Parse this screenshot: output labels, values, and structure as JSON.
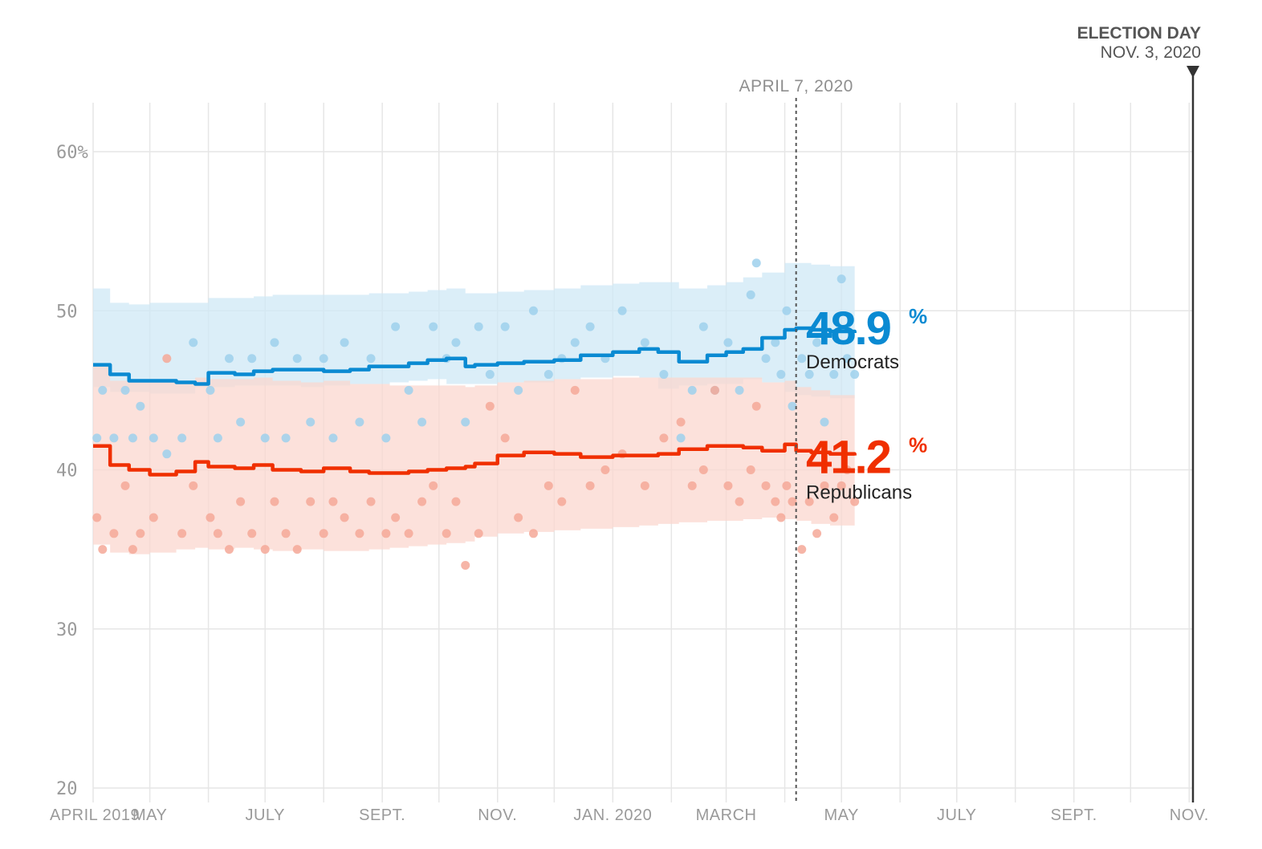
{
  "chart_data": {
    "type": "line",
    "x_type": "date",
    "xlim": [
      "2019-04-01",
      "2020-11-03"
    ],
    "ylim": [
      20,
      62
    ],
    "grid": true,
    "y_ticks": [
      {
        "value": 20,
        "label": "20"
      },
      {
        "value": 30,
        "label": "30"
      },
      {
        "value": 40,
        "label": "40"
      },
      {
        "value": 50,
        "label": "50"
      },
      {
        "value": 60,
        "label": "60%"
      }
    ],
    "x_ticks": [
      {
        "date": "2019-04-01",
        "label": "APRIL 2019"
      },
      {
        "date": "2019-05-01",
        "label": "MAY"
      },
      {
        "date": "2019-07-01",
        "label": "JULY"
      },
      {
        "date": "2019-09-01",
        "label": "SEPT."
      },
      {
        "date": "2019-11-01",
        "label": "NOV."
      },
      {
        "date": "2020-01-01",
        "label": "JAN. 2020"
      },
      {
        "date": "2020-03-01",
        "label": "MARCH"
      },
      {
        "date": "2020-05-01",
        "label": "MAY"
      },
      {
        "date": "2020-07-01",
        "label": "JULY"
      },
      {
        "date": "2020-09-01",
        "label": "SEPT."
      },
      {
        "date": "2020-11-01",
        "label": "NOV."
      }
    ],
    "minor_gridlines": [
      "2019-06-01",
      "2019-08-01",
      "2019-10-01",
      "2019-12-01",
      "2020-02-01",
      "2020-04-01",
      "2020-06-01",
      "2020-08-01",
      "2020-10-01"
    ],
    "today_marker": {
      "date": "2020-04-07",
      "label": "APRIL 7, 2020"
    },
    "election_day": {
      "date": "2020-11-03",
      "title": "ELECTION DAY",
      "date_label": "NOV. 3, 2020"
    },
    "series": [
      {
        "name": "Democrats",
        "value_label": "48.9",
        "pct_symbol": "%",
        "color": "#0a8ad2",
        "band_color": "#cfe8f6",
        "dot_color": "#9dd0ec",
        "x": [
          "2019-04-01",
          "2019-04-10",
          "2019-04-20",
          "2019-05-01",
          "2019-05-15",
          "2019-05-25",
          "2019-06-01",
          "2019-06-15",
          "2019-06-25",
          "2019-07-05",
          "2019-07-20",
          "2019-08-01",
          "2019-08-15",
          "2019-08-25",
          "2019-09-05",
          "2019-09-15",
          "2019-09-25",
          "2019-10-05",
          "2019-10-15",
          "2019-10-20",
          "2019-11-01",
          "2019-11-15",
          "2019-12-01",
          "2019-12-15",
          "2020-01-01",
          "2020-01-15",
          "2020-01-25",
          "2020-02-05",
          "2020-02-20",
          "2020-03-01",
          "2020-03-10",
          "2020-03-20",
          "2020-04-01",
          "2020-04-07",
          "2020-04-15",
          "2020-04-25",
          "2020-05-08"
        ],
        "values": [
          46.6,
          46.0,
          45.6,
          45.6,
          45.5,
          45.4,
          46.1,
          46.0,
          46.2,
          46.3,
          46.3,
          46.2,
          46.3,
          46.5,
          46.5,
          46.7,
          46.9,
          47.0,
          46.5,
          46.6,
          46.7,
          46.8,
          46.9,
          47.2,
          47.4,
          47.6,
          47.4,
          46.8,
          47.2,
          47.4,
          47.6,
          48.3,
          48.8,
          48.9,
          48.8,
          48.7,
          48.6
        ],
        "band_low": [
          45.6,
          45.2,
          44.9,
          44.9,
          44.8,
          44.8,
          45.2,
          45.2,
          45.3,
          45.3,
          45.3,
          45.2,
          45.3,
          45.4,
          45.4,
          45.5,
          45.6,
          45.7,
          45.4,
          45.4,
          45.4,
          45.5,
          45.5,
          45.7,
          45.8,
          45.9,
          45.8,
          45.1,
          45.3,
          45.4,
          45.4,
          45.7,
          45.5,
          44.9,
          44.7,
          44.6,
          44.5
        ],
        "band_high": [
          51.4,
          50.5,
          50.4,
          50.5,
          50.5,
          50.5,
          50.8,
          50.8,
          50.9,
          51.0,
          51.0,
          51.0,
          51.0,
          51.1,
          51.1,
          51.2,
          51.3,
          51.4,
          51.1,
          51.1,
          51.2,
          51.3,
          51.4,
          51.6,
          51.7,
          51.8,
          51.8,
          51.4,
          51.6,
          51.8,
          52.1,
          52.4,
          53.0,
          53.0,
          52.9,
          52.8,
          52.7
        ],
        "polls": [
          [
            {
              "d": "2019-04-03",
              "v": 42
            },
            {
              "d": "2019-04-06",
              "v": 45
            },
            {
              "d": "2019-04-12",
              "v": 42
            },
            {
              "d": "2019-04-18",
              "v": 45
            },
            {
              "d": "2019-04-22",
              "v": 42
            },
            {
              "d": "2019-04-26",
              "v": 44
            },
            {
              "d": "2019-05-03",
              "v": 42
            },
            {
              "d": "2019-05-10",
              "v": 41
            },
            {
              "d": "2019-05-18",
              "v": 42
            },
            {
              "d": "2019-05-24",
              "v": 48
            },
            {
              "d": "2019-06-02",
              "v": 45
            },
            {
              "d": "2019-06-06",
              "v": 42
            },
            {
              "d": "2019-06-12",
              "v": 47
            },
            {
              "d": "2019-06-18",
              "v": 43
            },
            {
              "d": "2019-06-24",
              "v": 47
            },
            {
              "d": "2019-07-01",
              "v": 42
            },
            {
              "d": "2019-07-06",
              "v": 48
            },
            {
              "d": "2019-07-12",
              "v": 42
            },
            {
              "d": "2019-07-18",
              "v": 47
            },
            {
              "d": "2019-07-25",
              "v": 43
            },
            {
              "d": "2019-08-01",
              "v": 47
            },
            {
              "d": "2019-08-06",
              "v": 42
            },
            {
              "d": "2019-08-12",
              "v": 48
            },
            {
              "d": "2019-08-20",
              "v": 43
            },
            {
              "d": "2019-08-26",
              "v": 47
            },
            {
              "d": "2019-09-03",
              "v": 42
            },
            {
              "d": "2019-09-08",
              "v": 49
            },
            {
              "d": "2019-09-15",
              "v": 45
            },
            {
              "d": "2019-09-22",
              "v": 43
            },
            {
              "d": "2019-09-28",
              "v": 49
            },
            {
              "d": "2019-10-05",
              "v": 47
            },
            {
              "d": "2019-10-10",
              "v": 48
            },
            {
              "d": "2019-10-15",
              "v": 43
            },
            {
              "d": "2019-10-22",
              "v": 49
            },
            {
              "d": "2019-10-28",
              "v": 46
            },
            {
              "d": "2019-11-05",
              "v": 49
            },
            {
              "d": "2019-11-12",
              "v": 45
            },
            {
              "d": "2019-11-20",
              "v": 50
            },
            {
              "d": "2019-11-28",
              "v": 46
            },
            {
              "d": "2019-12-05",
              "v": 47
            },
            {
              "d": "2019-12-12",
              "v": 48
            },
            {
              "d": "2019-12-20",
              "v": 49
            },
            {
              "d": "2019-12-28",
              "v": 47
            },
            {
              "d": "2020-01-06",
              "v": 50
            },
            {
              "d": "2020-01-18",
              "v": 48
            },
            {
              "d": "2020-01-28",
              "v": 46
            },
            {
              "d": "2020-02-06",
              "v": 42
            },
            {
              "d": "2020-02-12",
              "v": 45
            },
            {
              "d": "2020-02-18",
              "v": 49
            },
            {
              "d": "2020-02-24",
              "v": 45
            },
            {
              "d": "2020-03-02",
              "v": 48
            },
            {
              "d": "2020-03-08",
              "v": 45
            },
            {
              "d": "2020-03-14",
              "v": 51
            },
            {
              "d": "2020-03-17",
              "v": 53
            },
            {
              "d": "2020-03-22",
              "v": 47
            },
            {
              "d": "2020-03-27",
              "v": 48
            },
            {
              "d": "2020-03-30",
              "v": 46
            },
            {
              "d": "2020-04-02",
              "v": 50
            },
            {
              "d": "2020-04-05",
              "v": 44
            },
            {
              "d": "2020-04-10",
              "v": 47
            },
            {
              "d": "2020-04-14",
              "v": 46
            },
            {
              "d": "2020-04-18",
              "v": 48
            },
            {
              "d": "2020-04-22",
              "v": 43
            },
            {
              "d": "2020-04-27",
              "v": 46
            },
            {
              "d": "2020-05-01",
              "v": 52
            },
            {
              "d": "2020-05-04",
              "v": 47
            },
            {
              "d": "2020-05-08",
              "v": 46
            }
          ]
        ]
      },
      {
        "name": "Republicans",
        "value_label": "41.2",
        "pct_symbol": "%",
        "color": "#f02f00",
        "band_color": "#fbd7cf",
        "dot_color": "#f5a898",
        "x": [
          "2019-04-01",
          "2019-04-10",
          "2019-04-20",
          "2019-05-01",
          "2019-05-15",
          "2019-05-25",
          "2019-06-01",
          "2019-06-15",
          "2019-06-25",
          "2019-07-05",
          "2019-07-20",
          "2019-08-01",
          "2019-08-15",
          "2019-08-25",
          "2019-09-05",
          "2019-09-15",
          "2019-09-25",
          "2019-10-05",
          "2019-10-15",
          "2019-10-20",
          "2019-11-01",
          "2019-11-15",
          "2019-12-01",
          "2019-12-15",
          "2020-01-01",
          "2020-01-15",
          "2020-01-25",
          "2020-02-05",
          "2020-02-20",
          "2020-03-01",
          "2020-03-10",
          "2020-03-20",
          "2020-04-01",
          "2020-04-07",
          "2020-04-15",
          "2020-04-25",
          "2020-05-08"
        ],
        "values": [
          41.5,
          40.3,
          40.0,
          39.7,
          39.9,
          40.5,
          40.2,
          40.1,
          40.3,
          40.0,
          39.9,
          40.1,
          39.9,
          39.8,
          39.8,
          39.9,
          40.0,
          40.1,
          40.2,
          40.4,
          40.9,
          41.1,
          41.0,
          40.8,
          40.9,
          40.9,
          41.0,
          41.3,
          41.5,
          41.5,
          41.4,
          41.2,
          41.6,
          41.2,
          41.1,
          41.0,
          40.9
        ],
        "band_low": [
          36.6,
          35.3,
          34.8,
          34.7,
          34.8,
          35.0,
          35.1,
          35.0,
          35.1,
          35.0,
          34.9,
          35.0,
          34.9,
          34.9,
          35.0,
          35.1,
          35.2,
          35.3,
          35.4,
          35.5,
          35.8,
          36.0,
          36.1,
          36.2,
          36.3,
          36.4,
          36.5,
          36.6,
          36.7,
          36.8,
          36.8,
          36.9,
          37.0,
          36.9,
          36.8,
          36.6,
          36.5
        ],
        "band_high": [
          46.5,
          45.6,
          45.5,
          45.5,
          45.6,
          45.8,
          45.7,
          45.7,
          45.8,
          45.6,
          45.5,
          45.6,
          45.4,
          45.4,
          45.3,
          45.3,
          45.3,
          45.3,
          45.2,
          45.3,
          45.5,
          45.6,
          45.7,
          45.7,
          45.8,
          45.8,
          45.8,
          45.8,
          45.8,
          45.8,
          45.8,
          45.5,
          45.6,
          45.2,
          45.0,
          44.7,
          44.5
        ],
        "polls": [
          [
            {
              "d": "2019-04-03",
              "v": 37
            },
            {
              "d": "2019-04-06",
              "v": 35
            },
            {
              "d": "2019-04-12",
              "v": 36
            },
            {
              "d": "2019-04-18",
              "v": 39
            },
            {
              "d": "2019-04-22",
              "v": 35
            },
            {
              "d": "2019-04-26",
              "v": 36
            },
            {
              "d": "2019-05-03",
              "v": 37
            },
            {
              "d": "2019-05-10",
              "v": 47
            },
            {
              "d": "2019-05-18",
              "v": 36
            },
            {
              "d": "2019-05-24",
              "v": 39
            },
            {
              "d": "2019-06-02",
              "v": 37
            },
            {
              "d": "2019-06-06",
              "v": 36
            },
            {
              "d": "2019-06-12",
              "v": 35
            },
            {
              "d": "2019-06-18",
              "v": 38
            },
            {
              "d": "2019-06-24",
              "v": 36
            },
            {
              "d": "2019-07-01",
              "v": 35
            },
            {
              "d": "2019-07-06",
              "v": 38
            },
            {
              "d": "2019-07-12",
              "v": 36
            },
            {
              "d": "2019-07-18",
              "v": 35
            },
            {
              "d": "2019-07-25",
              "v": 38
            },
            {
              "d": "2019-08-01",
              "v": 36
            },
            {
              "d": "2019-08-06",
              "v": 38
            },
            {
              "d": "2019-08-12",
              "v": 37
            },
            {
              "d": "2019-08-20",
              "v": 36
            },
            {
              "d": "2019-08-26",
              "v": 38
            },
            {
              "d": "2019-09-03",
              "v": 36
            },
            {
              "d": "2019-09-08",
              "v": 37
            },
            {
              "d": "2019-09-15",
              "v": 36
            },
            {
              "d": "2019-09-22",
              "v": 38
            },
            {
              "d": "2019-09-28",
              "v": 39
            },
            {
              "d": "2019-10-05",
              "v": 36
            },
            {
              "d": "2019-10-10",
              "v": 38
            },
            {
              "d": "2019-10-15",
              "v": 34
            },
            {
              "d": "2019-10-22",
              "v": 36
            },
            {
              "d": "2019-10-28",
              "v": 44
            },
            {
              "d": "2019-11-05",
              "v": 42
            },
            {
              "d": "2019-11-12",
              "v": 37
            },
            {
              "d": "2019-11-20",
              "v": 36
            },
            {
              "d": "2019-11-28",
              "v": 39
            },
            {
              "d": "2019-12-05",
              "v": 38
            },
            {
              "d": "2019-12-12",
              "v": 45
            },
            {
              "d": "2019-12-20",
              "v": 39
            },
            {
              "d": "2019-12-28",
              "v": 40
            },
            {
              "d": "2020-01-06",
              "v": 41
            },
            {
              "d": "2020-01-18",
              "v": 39
            },
            {
              "d": "2020-01-28",
              "v": 42
            },
            {
              "d": "2020-02-06",
              "v": 43
            },
            {
              "d": "2020-02-12",
              "v": 39
            },
            {
              "d": "2020-02-18",
              "v": 40
            },
            {
              "d": "2020-02-24",
              "v": 45
            },
            {
              "d": "2020-03-02",
              "v": 39
            },
            {
              "d": "2020-03-08",
              "v": 38
            },
            {
              "d": "2020-03-14",
              "v": 40
            },
            {
              "d": "2020-03-17",
              "v": 44
            },
            {
              "d": "2020-03-22",
              "v": 39
            },
            {
              "d": "2020-03-27",
              "v": 38
            },
            {
              "d": "2020-03-30",
              "v": 37
            },
            {
              "d": "2020-04-02",
              "v": 39
            },
            {
              "d": "2020-04-05",
              "v": 38
            },
            {
              "d": "2020-04-10",
              "v": 35
            },
            {
              "d": "2020-04-14",
              "v": 38
            },
            {
              "d": "2020-04-18",
              "v": 36
            },
            {
              "d": "2020-04-22",
              "v": 39
            },
            {
              "d": "2020-04-27",
              "v": 37
            },
            {
              "d": "2020-05-01",
              "v": 39
            },
            {
              "d": "2020-05-04",
              "v": 40
            },
            {
              "d": "2020-05-08",
              "v": 38
            }
          ]
        ]
      }
    ]
  }
}
